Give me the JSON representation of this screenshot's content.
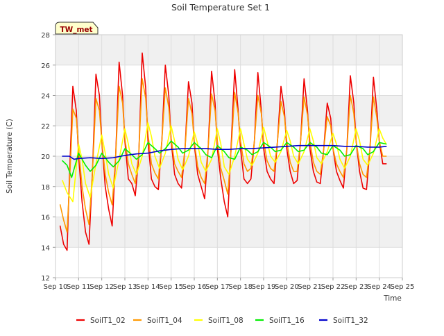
{
  "chart_data": {
    "type": "line",
    "title": "Soil Temperature Set 1",
    "xlabel": "Time",
    "ylabel": "Soil Temperature (C)",
    "badge": "TW_met",
    "ylim": [
      12,
      28
    ],
    "yticks": [
      12,
      14,
      16,
      18,
      20,
      22,
      24,
      26,
      28
    ],
    "xlim": [
      10,
      25
    ],
    "xticks": [
      {
        "v": 10,
        "label": "Sep 10"
      },
      {
        "v": 11,
        "label": "Sep 11"
      },
      {
        "v": 12,
        "label": "Sep 12"
      },
      {
        "v": 13,
        "label": "Sep 13"
      },
      {
        "v": 14,
        "label": "Sep 14"
      },
      {
        "v": 15,
        "label": "Sep 15"
      },
      {
        "v": 16,
        "label": "Sep 16"
      },
      {
        "v": 17,
        "label": "Sep 17"
      },
      {
        "v": 18,
        "label": "Sep 18"
      },
      {
        "v": 19,
        "label": "Sep 19"
      },
      {
        "v": 20,
        "label": "Sep 20"
      },
      {
        "v": 21,
        "label": "Sep 21"
      },
      {
        "v": 22,
        "label": "Sep 22"
      },
      {
        "v": 23,
        "label": "Sep 23"
      },
      {
        "v": 24,
        "label": "Sep 24"
      },
      {
        "v": 25,
        "label": "Sep 25"
      }
    ],
    "grid": true,
    "legend_position": "bottom",
    "series": [
      {
        "name": "SoilT1_02",
        "color": "#ee0000",
        "x": [
          10.2,
          10.35,
          10.5,
          10.6,
          10.75,
          10.9,
          11.0,
          11.15,
          11.3,
          11.45,
          11.6,
          11.75,
          11.9,
          12.0,
          12.15,
          12.3,
          12.45,
          12.6,
          12.75,
          12.9,
          13.0,
          13.15,
          13.3,
          13.45,
          13.6,
          13.75,
          13.9,
          14.0,
          14.15,
          14.3,
          14.45,
          14.6,
          14.75,
          14.9,
          15.0,
          15.15,
          15.3,
          15.45,
          15.6,
          15.75,
          15.9,
          16.0,
          16.15,
          16.3,
          16.45,
          16.6,
          16.75,
          16.9,
          17.0,
          17.15,
          17.3,
          17.45,
          17.6,
          17.75,
          17.9,
          18.0,
          18.15,
          18.3,
          18.45,
          18.6,
          18.75,
          18.9,
          19.0,
          19.15,
          19.3,
          19.45,
          19.6,
          19.75,
          19.9,
          20.0,
          20.15,
          20.3,
          20.45,
          20.6,
          20.75,
          20.9,
          21.0,
          21.15,
          21.3,
          21.45,
          21.6,
          21.75,
          21.9,
          22.0,
          22.15,
          22.3,
          22.45,
          22.6,
          22.75,
          22.9,
          23.0,
          23.15,
          23.3,
          23.45,
          23.6,
          23.75,
          23.9,
          24.0,
          24.15,
          24.3
        ],
        "y": [
          15.4,
          14.2,
          13.8,
          18.5,
          24.6,
          23.0,
          20.0,
          17.0,
          15.0,
          14.2,
          19.0,
          25.4,
          24.0,
          21.0,
          18.0,
          16.5,
          15.4,
          20.0,
          26.2,
          24.0,
          21.0,
          18.5,
          18.2,
          17.4,
          20.0,
          26.8,
          24.5,
          21.0,
          18.5,
          18.0,
          17.8,
          21.0,
          26.0,
          24.0,
          21.0,
          18.8,
          18.2,
          17.9,
          20.5,
          24.9,
          23.5,
          20.8,
          18.8,
          18.0,
          17.2,
          20.5,
          25.6,
          23.5,
          20.5,
          18.5,
          17.0,
          16.0,
          20.8,
          25.7,
          23.0,
          20.5,
          18.5,
          18.2,
          18.5,
          21.0,
          25.5,
          23.0,
          20.5,
          19.0,
          18.5,
          18.2,
          21.0,
          24.6,
          23.0,
          20.5,
          19.0,
          18.2,
          18.4,
          21.0,
          25.1,
          23.0,
          20.5,
          19.0,
          18.3,
          18.2,
          20.5,
          23.5,
          22.5,
          20.5,
          19.0,
          18.4,
          17.9,
          20.5,
          25.3,
          23.5,
          21.0,
          19.0,
          17.9,
          17.8,
          20.5,
          25.2,
          23.0,
          21.0,
          19.5,
          19.5
        ]
      },
      {
        "name": "SoilT1_04",
        "color": "#ff9900",
        "x": [
          10.2,
          10.35,
          10.5,
          10.6,
          10.75,
          10.9,
          11.0,
          11.15,
          11.3,
          11.45,
          11.6,
          11.75,
          11.9,
          12.0,
          12.15,
          12.3,
          12.45,
          12.6,
          12.75,
          12.9,
          13.0,
          13.15,
          13.3,
          13.45,
          13.6,
          13.75,
          13.9,
          14.0,
          14.15,
          14.3,
          14.45,
          14.6,
          14.75,
          14.9,
          15.0,
          15.15,
          15.3,
          15.45,
          15.6,
          15.75,
          15.9,
          16.0,
          16.15,
          16.3,
          16.45,
          16.6,
          16.75,
          16.9,
          17.0,
          17.15,
          17.3,
          17.45,
          17.6,
          17.75,
          17.9,
          18.0,
          18.15,
          18.3,
          18.45,
          18.6,
          18.75,
          18.9,
          19.0,
          19.15,
          19.3,
          19.45,
          19.6,
          19.75,
          19.9,
          20.0,
          20.15,
          20.3,
          20.45,
          20.6,
          20.75,
          20.9,
          21.0,
          21.15,
          21.3,
          21.45,
          21.6,
          21.75,
          21.9,
          22.0,
          22.15,
          22.3,
          22.45,
          22.6,
          22.75,
          22.9,
          23.0,
          23.15,
          23.3,
          23.45,
          23.6,
          23.75,
          23.9,
          24.0,
          24.15,
          24.3
        ],
        "y": [
          16.8,
          15.8,
          15.0,
          18.0,
          23.1,
          22.5,
          20.5,
          18.0,
          16.5,
          15.5,
          19.0,
          23.8,
          23.0,
          21.0,
          18.8,
          17.6,
          16.8,
          20.0,
          24.6,
          23.5,
          21.2,
          19.5,
          18.8,
          18.2,
          20.2,
          25.1,
          23.8,
          21.5,
          19.5,
          18.9,
          18.5,
          21.0,
          24.5,
          23.2,
          21.2,
          19.5,
          19.0,
          18.6,
          20.5,
          23.8,
          22.8,
          21.0,
          19.3,
          18.6,
          18.2,
          20.5,
          24.1,
          23.0,
          21.0,
          19.2,
          18.4,
          17.5,
          20.5,
          24.2,
          22.8,
          21.0,
          19.5,
          19.0,
          19.2,
          21.0,
          24.0,
          22.8,
          21.0,
          19.7,
          19.2,
          19.0,
          21.0,
          23.6,
          22.6,
          21.0,
          19.6,
          19.0,
          19.0,
          21.0,
          23.9,
          22.7,
          21.0,
          19.6,
          19.0,
          18.8,
          20.5,
          22.6,
          22.0,
          20.5,
          19.5,
          19.0,
          18.6,
          20.5,
          24.0,
          22.8,
          21.0,
          19.5,
          18.8,
          18.6,
          20.5,
          23.9,
          22.5,
          21.0,
          20.0,
          20.0
        ]
      },
      {
        "name": "SoilT1_08",
        "color": "#ffff00",
        "x": [
          10.3,
          10.5,
          10.75,
          11.0,
          11.15,
          11.3,
          11.5,
          11.75,
          12.0,
          12.15,
          12.3,
          12.5,
          12.75,
          13.0,
          13.15,
          13.3,
          13.5,
          13.75,
          14.0,
          14.15,
          14.3,
          14.5,
          14.75,
          15.0,
          15.15,
          15.3,
          15.5,
          15.75,
          16.0,
          16.15,
          16.3,
          16.5,
          16.75,
          17.0,
          17.15,
          17.3,
          17.5,
          17.75,
          18.0,
          18.15,
          18.3,
          18.5,
          18.75,
          19.0,
          19.15,
          19.3,
          19.5,
          19.75,
          20.0,
          20.15,
          20.3,
          20.5,
          20.75,
          21.0,
          21.15,
          21.3,
          21.5,
          21.75,
          22.0,
          22.15,
          22.3,
          22.5,
          22.75,
          23.0,
          23.15,
          23.3,
          23.5,
          23.75,
          24.0,
          24.15,
          24.3
        ],
        "y": [
          18.4,
          17.6,
          17.0,
          20.8,
          19.8,
          18.2,
          17.3,
          19.5,
          21.4,
          20.2,
          18.8,
          17.9,
          19.8,
          21.8,
          20.8,
          19.5,
          18.8,
          20.0,
          22.2,
          21.3,
          20.0,
          19.2,
          20.2,
          22.0,
          21.0,
          19.8,
          19.1,
          20.0,
          21.6,
          20.8,
          19.6,
          19.0,
          19.8,
          21.8,
          20.8,
          19.3,
          18.8,
          20.0,
          21.8,
          20.8,
          19.8,
          19.4,
          20.2,
          21.9,
          21.0,
          20.0,
          19.6,
          20.3,
          21.7,
          21.0,
          20.0,
          19.5,
          20.3,
          21.8,
          21.0,
          19.9,
          19.5,
          20.3,
          21.5,
          20.8,
          19.8,
          19.2,
          20.0,
          21.8,
          21.0,
          19.8,
          19.4,
          20.2,
          21.8,
          21.2,
          20.8
        ]
      },
      {
        "name": "SoilT1_16",
        "color": "#00ee00",
        "x": [
          10.3,
          10.5,
          10.7,
          11.0,
          11.3,
          11.5,
          11.75,
          12.0,
          12.3,
          12.5,
          12.75,
          13.0,
          13.3,
          13.5,
          13.75,
          14.0,
          14.3,
          14.5,
          14.75,
          15.0,
          15.3,
          15.5,
          15.75,
          16.0,
          16.3,
          16.5,
          16.75,
          17.0,
          17.3,
          17.5,
          17.75,
          18.0,
          18.3,
          18.5,
          18.75,
          19.0,
          19.3,
          19.5,
          19.75,
          20.0,
          20.3,
          20.5,
          20.75,
          21.0,
          21.3,
          21.5,
          21.75,
          22.0,
          22.3,
          22.5,
          22.75,
          23.0,
          23.3,
          23.5,
          23.75,
          24.0,
          24.3
        ],
        "y": [
          19.7,
          19.4,
          18.6,
          20.2,
          19.4,
          19.0,
          19.4,
          20.2,
          19.6,
          19.3,
          19.7,
          20.5,
          20.1,
          19.8,
          20.1,
          20.9,
          20.5,
          20.2,
          20.5,
          21.0,
          20.6,
          20.2,
          20.4,
          20.9,
          20.5,
          20.1,
          19.9,
          20.7,
          20.3,
          19.9,
          19.8,
          20.6,
          20.4,
          20.1,
          20.3,
          20.9,
          20.6,
          20.3,
          20.4,
          20.9,
          20.6,
          20.3,
          20.4,
          20.9,
          20.6,
          20.2,
          20.1,
          20.7,
          20.4,
          20.0,
          20.1,
          20.7,
          20.5,
          20.1,
          20.3,
          20.9,
          20.8
        ]
      },
      {
        "name": "SoilT1_32",
        "color": "#0000cc",
        "x": [
          10.3,
          10.6,
          10.8,
          11.0,
          11.5,
          12.0,
          12.5,
          13.0,
          13.5,
          14.0,
          14.5,
          15.0,
          15.5,
          16.0,
          16.5,
          17.0,
          17.5,
          18.0,
          18.5,
          19.0,
          19.5,
          20.0,
          20.5,
          21.0,
          21.5,
          22.0,
          22.5,
          23.0,
          23.5,
          24.0,
          24.3
        ],
        "y": [
          20.0,
          20.0,
          19.8,
          19.85,
          19.9,
          19.85,
          19.9,
          20.05,
          20.15,
          20.2,
          20.35,
          20.45,
          20.5,
          20.5,
          20.5,
          20.45,
          20.45,
          20.5,
          20.5,
          20.55,
          20.6,
          20.65,
          20.7,
          20.7,
          20.7,
          20.7,
          20.65,
          20.65,
          20.6,
          20.6,
          20.65
        ]
      }
    ]
  }
}
